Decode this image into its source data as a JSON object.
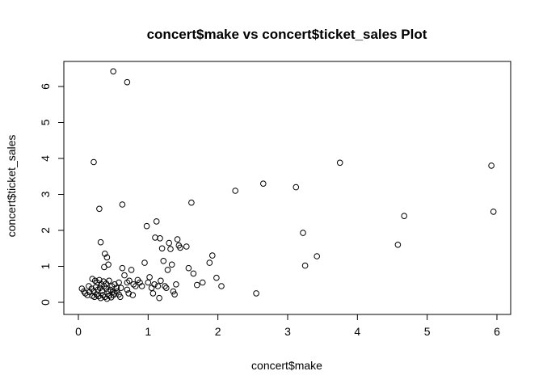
{
  "chart_data": {
    "type": "scatter",
    "title": "concert$make vs concert$ticket_sales Plot",
    "xlabel": "concert$make",
    "ylabel": "concert$ticket_sales",
    "xlim": [
      0,
      6
    ],
    "ylim": [
      0,
      6.5
    ],
    "xticks": [
      0,
      1,
      2,
      3,
      4,
      5,
      6
    ],
    "yticks": [
      0,
      1,
      2,
      3,
      4,
      5,
      6
    ],
    "grid": false,
    "legend": "none",
    "marker": "open-circle",
    "color": "#000000",
    "points": [
      [
        0.5,
        6.42
      ],
      [
        0.7,
        6.12
      ],
      [
        0.22,
        3.9
      ],
      [
        0.3,
        2.6
      ],
      [
        0.63,
        2.72
      ],
      [
        0.32,
        1.67
      ],
      [
        0.38,
        1.35
      ],
      [
        0.41,
        1.25
      ],
      [
        0.43,
        1.05
      ],
      [
        0.37,
        0.98
      ],
      [
        0.63,
        0.95
      ],
      [
        0.58,
        0.55
      ],
      [
        0.2,
        0.65
      ],
      [
        0.24,
        0.6
      ],
      [
        0.27,
        0.55
      ],
      [
        0.3,
        0.62
      ],
      [
        0.33,
        0.5
      ],
      [
        0.36,
        0.58
      ],
      [
        0.4,
        0.52
      ],
      [
        0.44,
        0.6
      ],
      [
        0.48,
        0.45
      ],
      [
        0.52,
        0.5
      ],
      [
        0.55,
        0.4
      ],
      [
        0.15,
        0.45
      ],
      [
        0.19,
        0.38
      ],
      [
        0.22,
        0.3
      ],
      [
        0.25,
        0.42
      ],
      [
        0.28,
        0.35
      ],
      [
        0.31,
        0.4
      ],
      [
        0.34,
        0.32
      ],
      [
        0.37,
        0.45
      ],
      [
        0.4,
        0.38
      ],
      [
        0.43,
        0.3
      ],
      [
        0.46,
        0.35
      ],
      [
        0.49,
        0.28
      ],
      [
        0.52,
        0.25
      ],
      [
        0.55,
        0.3
      ],
      [
        0.58,
        0.22
      ],
      [
        0.61,
        0.4
      ],
      [
        0.05,
        0.38
      ],
      [
        0.08,
        0.3
      ],
      [
        0.1,
        0.25
      ],
      [
        0.13,
        0.2
      ],
      [
        0.16,
        0.28
      ],
      [
        0.2,
        0.18
      ],
      [
        0.23,
        0.15
      ],
      [
        0.26,
        0.22
      ],
      [
        0.29,
        0.17
      ],
      [
        0.32,
        0.12
      ],
      [
        0.35,
        0.2
      ],
      [
        0.38,
        0.15
      ],
      [
        0.41,
        0.1
      ],
      [
        0.44,
        0.18
      ],
      [
        0.47,
        0.14
      ],
      [
        0.5,
        0.2
      ],
      [
        0.6,
        0.15
      ],
      [
        0.66,
        0.75
      ],
      [
        0.7,
        0.55
      ],
      [
        0.73,
        0.6
      ],
      [
        0.76,
        0.9
      ],
      [
        0.79,
        0.5
      ],
      [
        0.82,
        0.45
      ],
      [
        0.85,
        0.62
      ],
      [
        0.88,
        0.55
      ],
      [
        0.91,
        0.45
      ],
      [
        0.72,
        0.25
      ],
      [
        0.78,
        0.2
      ],
      [
        0.7,
        0.35
      ],
      [
        0.95,
        1.1
      ],
      [
        0.98,
        2.12
      ],
      [
        1.0,
        0.55
      ],
      [
        1.02,
        0.7
      ],
      [
        1.05,
        0.4
      ],
      [
        1.07,
        0.25
      ],
      [
        1.09,
        0.5
      ],
      [
        1.1,
        1.8
      ],
      [
        1.12,
        2.25
      ],
      [
        1.14,
        0.45
      ],
      [
        1.16,
        0.12
      ],
      [
        1.17,
        1.78
      ],
      [
        1.18,
        0.6
      ],
      [
        1.2,
        1.5
      ],
      [
        1.22,
        1.15
      ],
      [
        1.24,
        0.45
      ],
      [
        1.26,
        0.4
      ],
      [
        1.28,
        0.9
      ],
      [
        1.3,
        1.65
      ],
      [
        1.32,
        1.48
      ],
      [
        1.34,
        1.05
      ],
      [
        1.36,
        0.3
      ],
      [
        1.38,
        0.22
      ],
      [
        1.4,
        0.5
      ],
      [
        1.42,
        1.75
      ],
      [
        1.44,
        1.58
      ],
      [
        1.46,
        1.52
      ],
      [
        1.55,
        1.55
      ],
      [
        1.58,
        0.95
      ],
      [
        1.62,
        2.77
      ],
      [
        1.65,
        0.8
      ],
      [
        1.7,
        0.48
      ],
      [
        1.78,
        0.55
      ],
      [
        1.88,
        1.1
      ],
      [
        1.92,
        1.3
      ],
      [
        1.98,
        0.68
      ],
      [
        2.05,
        0.45
      ],
      [
        2.25,
        3.1
      ],
      [
        2.55,
        0.25
      ],
      [
        2.65,
        3.3
      ],
      [
        3.12,
        3.2
      ],
      [
        3.22,
        1.93
      ],
      [
        3.25,
        1.02
      ],
      [
        3.42,
        1.28
      ],
      [
        3.75,
        3.88
      ],
      [
        4.58,
        1.6
      ],
      [
        4.67,
        2.4
      ],
      [
        5.92,
        3.8
      ],
      [
        5.95,
        2.52
      ]
    ]
  }
}
